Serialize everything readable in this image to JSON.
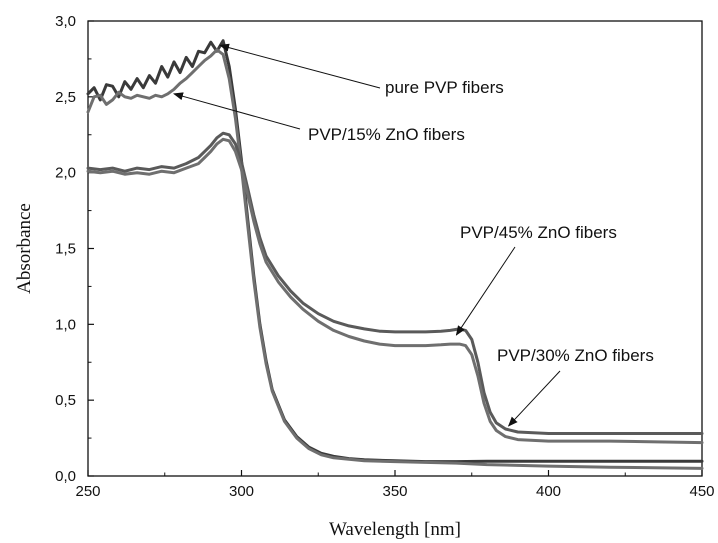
{
  "chart_data": {
    "type": "line",
    "title": "",
    "xlabel": "Wavelength [nm]",
    "ylabel": "Absorbance",
    "xlim": [
      250,
      450
    ],
    "ylim": [
      0.0,
      3.0
    ],
    "grid": false,
    "legend": "none",
    "x_ticks": [
      250,
      300,
      350,
      400,
      450
    ],
    "x_tick_labels": [
      "250",
      "300",
      "350",
      "400",
      "450"
    ],
    "y_ticks": [
      0.0,
      0.5,
      1.0,
      1.5,
      2.0,
      2.5,
      3.0
    ],
    "y_tick_labels": [
      "0,0",
      "0,5",
      "1,0",
      "1,5",
      "2,0",
      "2,5",
      "3,0"
    ],
    "series": [
      {
        "color": "#3a3a3a",
        "points": [
          [
            250,
            2.52
          ],
          [
            252,
            2.56
          ],
          [
            254,
            2.48
          ],
          [
            256,
            2.58
          ],
          [
            258,
            2.57
          ],
          [
            260,
            2.5
          ],
          [
            262,
            2.6
          ],
          [
            264,
            2.55
          ],
          [
            266,
            2.62
          ],
          [
            268,
            2.56
          ],
          [
            270,
            2.64
          ],
          [
            272,
            2.59
          ],
          [
            274,
            2.7
          ],
          [
            276,
            2.63
          ],
          [
            278,
            2.73
          ],
          [
            280,
            2.66
          ],
          [
            282,
            2.76
          ],
          [
            284,
            2.7
          ],
          [
            286,
            2.8
          ],
          [
            288,
            2.79
          ],
          [
            290,
            2.86
          ],
          [
            292,
            2.8
          ],
          [
            294,
            2.87
          ],
          [
            296,
            2.7
          ],
          [
            298,
            2.42
          ],
          [
            300,
            2.08
          ],
          [
            302,
            1.7
          ],
          [
            304,
            1.32
          ],
          [
            306,
            1.0
          ],
          [
            308,
            0.76
          ],
          [
            310,
            0.57
          ],
          [
            314,
            0.37
          ],
          [
            318,
            0.26
          ],
          [
            322,
            0.19
          ],
          [
            326,
            0.15
          ],
          [
            330,
            0.13
          ],
          [
            335,
            0.115
          ],
          [
            340,
            0.107
          ],
          [
            350,
            0.1
          ],
          [
            360,
            0.095
          ],
          [
            370,
            0.095
          ],
          [
            380,
            0.097
          ],
          [
            400,
            0.097
          ],
          [
            420,
            0.097
          ],
          [
            450,
            0.097
          ]
        ]
      },
      {
        "color": "#6f6f6f",
        "points": [
          [
            250,
            2.4
          ],
          [
            252,
            2.5
          ],
          [
            254,
            2.51
          ],
          [
            256,
            2.45
          ],
          [
            258,
            2.48
          ],
          [
            260,
            2.53
          ],
          [
            262,
            2.5
          ],
          [
            264,
            2.49
          ],
          [
            266,
            2.51
          ],
          [
            268,
            2.5
          ],
          [
            270,
            2.49
          ],
          [
            272,
            2.51
          ],
          [
            274,
            2.5
          ],
          [
            276,
            2.52
          ],
          [
            278,
            2.55
          ],
          [
            280,
            2.59
          ],
          [
            282,
            2.62
          ],
          [
            284,
            2.66
          ],
          [
            286,
            2.7
          ],
          [
            288,
            2.74
          ],
          [
            290,
            2.77
          ],
          [
            292,
            2.81
          ],
          [
            294,
            2.78
          ],
          [
            296,
            2.62
          ],
          [
            298,
            2.36
          ],
          [
            300,
            2.03
          ],
          [
            302,
            1.66
          ],
          [
            304,
            1.29
          ],
          [
            306,
            0.98
          ],
          [
            308,
            0.74
          ],
          [
            310,
            0.56
          ],
          [
            314,
            0.36
          ],
          [
            318,
            0.25
          ],
          [
            322,
            0.18
          ],
          [
            326,
            0.14
          ],
          [
            330,
            0.12
          ],
          [
            335,
            0.11
          ],
          [
            340,
            0.1
          ],
          [
            350,
            0.095
          ],
          [
            360,
            0.09
          ],
          [
            370,
            0.085
          ],
          [
            380,
            0.075
          ],
          [
            400,
            0.065
          ],
          [
            420,
            0.058
          ],
          [
            450,
            0.05
          ]
        ]
      },
      {
        "color": "#5a5a5a",
        "points": [
          [
            250,
            2.03
          ],
          [
            254,
            2.02
          ],
          [
            258,
            2.03
          ],
          [
            262,
            2.01
          ],
          [
            266,
            2.03
          ],
          [
            270,
            2.02
          ],
          [
            274,
            2.04
          ],
          [
            278,
            2.03
          ],
          [
            282,
            2.06
          ],
          [
            286,
            2.1
          ],
          [
            288,
            2.14
          ],
          [
            290,
            2.18
          ],
          [
            292,
            2.23
          ],
          [
            294,
            2.26
          ],
          [
            296,
            2.25
          ],
          [
            298,
            2.19
          ],
          [
            300,
            2.07
          ],
          [
            302,
            1.9
          ],
          [
            304,
            1.72
          ],
          [
            306,
            1.57
          ],
          [
            308,
            1.45
          ],
          [
            312,
            1.32
          ],
          [
            316,
            1.22
          ],
          [
            320,
            1.14
          ],
          [
            325,
            1.07
          ],
          [
            330,
            1.02
          ],
          [
            335,
            0.99
          ],
          [
            340,
            0.97
          ],
          [
            345,
            0.955
          ],
          [
            350,
            0.95
          ],
          [
            355,
            0.95
          ],
          [
            360,
            0.95
          ],
          [
            365,
            0.955
          ],
          [
            368,
            0.96
          ],
          [
            371,
            0.97
          ],
          [
            373,
            0.96
          ],
          [
            375,
            0.9
          ],
          [
            377,
            0.75
          ],
          [
            379,
            0.55
          ],
          [
            381,
            0.42
          ],
          [
            383,
            0.35
          ],
          [
            386,
            0.31
          ],
          [
            390,
            0.29
          ],
          [
            400,
            0.28
          ],
          [
            420,
            0.28
          ],
          [
            450,
            0.28
          ]
        ]
      },
      {
        "color": "#6f6f6f",
        "points": [
          [
            250,
            2.01
          ],
          [
            254,
            2.0
          ],
          [
            258,
            2.01
          ],
          [
            262,
            1.99
          ],
          [
            266,
            2.0
          ],
          [
            270,
            1.99
          ],
          [
            274,
            2.01
          ],
          [
            278,
            2.0
          ],
          [
            282,
            2.03
          ],
          [
            286,
            2.06
          ],
          [
            288,
            2.1
          ],
          [
            290,
            2.14
          ],
          [
            292,
            2.19
          ],
          [
            294,
            2.22
          ],
          [
            296,
            2.21
          ],
          [
            298,
            2.14
          ],
          [
            300,
            2.02
          ],
          [
            302,
            1.86
          ],
          [
            304,
            1.68
          ],
          [
            306,
            1.53
          ],
          [
            308,
            1.41
          ],
          [
            312,
            1.28
          ],
          [
            316,
            1.18
          ],
          [
            320,
            1.1
          ],
          [
            325,
            1.02
          ],
          [
            330,
            0.96
          ],
          [
            335,
            0.92
          ],
          [
            340,
            0.89
          ],
          [
            345,
            0.87
          ],
          [
            350,
            0.86
          ],
          [
            355,
            0.86
          ],
          [
            360,
            0.86
          ],
          [
            365,
            0.865
          ],
          [
            368,
            0.87
          ],
          [
            371,
            0.87
          ],
          [
            373,
            0.86
          ],
          [
            375,
            0.8
          ],
          [
            377,
            0.66
          ],
          [
            379,
            0.48
          ],
          [
            381,
            0.36
          ],
          [
            383,
            0.3
          ],
          [
            386,
            0.26
          ],
          [
            390,
            0.24
          ],
          [
            400,
            0.23
          ],
          [
            420,
            0.23
          ],
          [
            450,
            0.22
          ]
        ]
      }
    ],
    "annotations": [
      {
        "text": "pure PVP fibers",
        "arrow_to": [
          293,
          2.84
        ]
      },
      {
        "text": "PVP/15% ZnO fibers",
        "arrow_to": [
          278,
          2.52
        ]
      },
      {
        "text": "PVP/45% ZnO fibers",
        "arrow_to": [
          370,
          0.93
        ]
      },
      {
        "text": "PVP/30% ZnO fibers",
        "arrow_to": [
          387,
          0.33
        ]
      }
    ]
  }
}
